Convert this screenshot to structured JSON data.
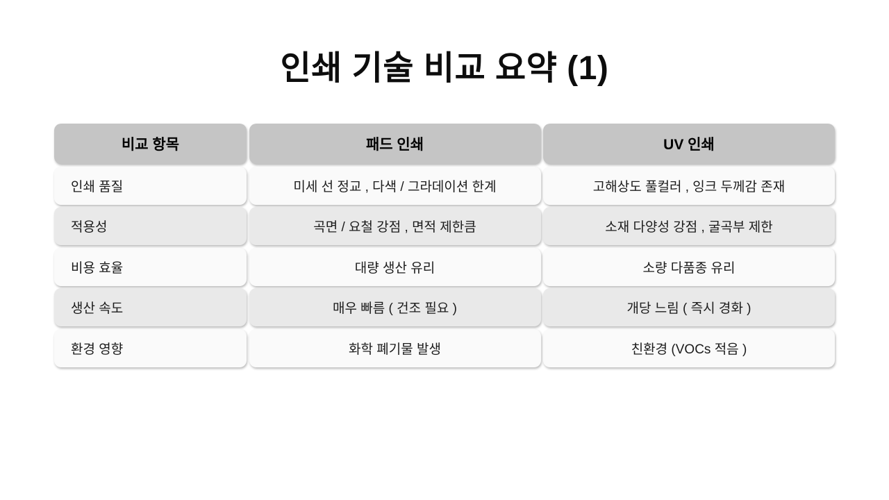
{
  "slide": {
    "title": "인쇄 기술 비교 요약  (1)"
  },
  "table": {
    "columns": [
      "비교 항목",
      "패드 인쇄",
      "UV  인쇄"
    ],
    "rows": [
      {
        "item": "인쇄 품질",
        "pad": "미세 선 정교 ,  다색 / 그라데이션 한계",
        "uv": "고해상도 풀컬러 ,  잉크 두께감 존재"
      },
      {
        "item": "적용성",
        "pad": "곡면 / 요철 강점 ,  면적 제한큼",
        "uv": "소재 다양성 강점 ,  굴곡부 제한"
      },
      {
        "item": "비용 효율",
        "pad": "대량 생산 유리",
        "uv": "소량 다품종 유리"
      },
      {
        "item": "생산 속도",
        "pad": "매우 빠름  ( 건조 필요 )",
        "uv": "개당 느림  ( 즉시 경화 )"
      },
      {
        "item": "환경 영향",
        "pad": "화학 폐기물 발생",
        "uv": "친환경  (VOCs  적음 )"
      }
    ],
    "colors": {
      "header_bg": "#c5c5c5",
      "row_light_bg": "#fafafa",
      "row_dark_bg": "#e9e9e9",
      "text": "#1c1c1c",
      "title_text": "#0d0d0d"
    }
  }
}
